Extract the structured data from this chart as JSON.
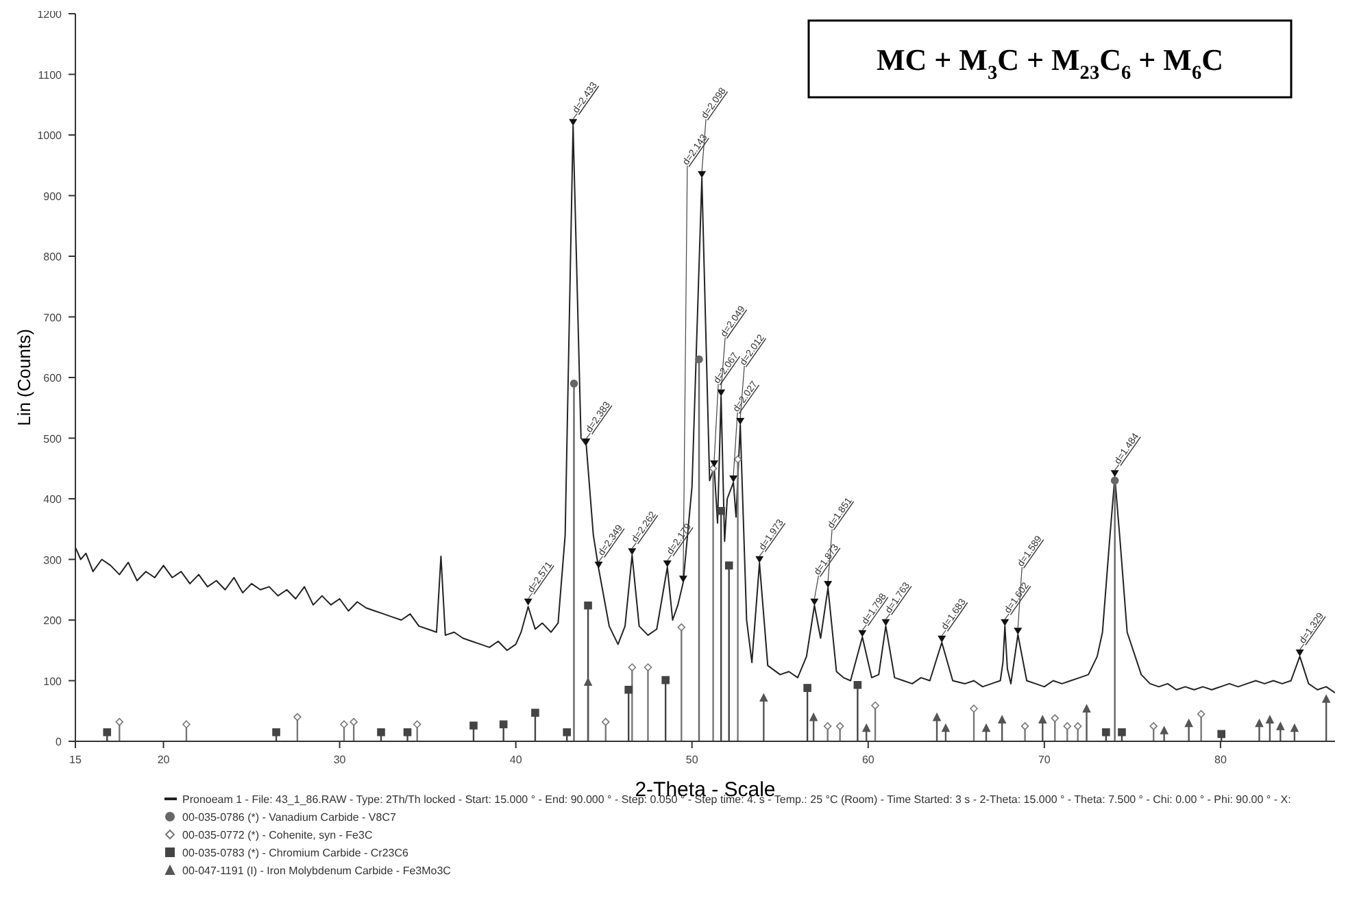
{
  "chart_data": {
    "type": "line",
    "title": "MC + M$_{3}$C + M$_{23}$C$_{6}$ + M$_{6}$C",
    "xlabel": "2-Theta - Scale",
    "ylabel": "Lin (Counts)",
    "xlim": [
      15,
      86.5
    ],
    "ylim": [
      0,
      1200
    ],
    "xticks": [
      {
        "value": 15,
        "label": "15"
      },
      {
        "value": 20,
        "label": "20"
      },
      {
        "value": 30,
        "label": "30"
      },
      {
        "value": 40,
        "label": "40"
      },
      {
        "value": 50,
        "label": "50"
      },
      {
        "value": 60,
        "label": "60"
      },
      {
        "value": 70,
        "label": "70"
      },
      {
        "value": 80,
        "label": "80"
      }
    ],
    "yticks": [
      0,
      100,
      200,
      300,
      400,
      500,
      600,
      700,
      800,
      900,
      1000,
      1100,
      1200
    ],
    "legend": "bottom",
    "grid": false,
    "series": [
      {
        "name": "Pronoeam 1 - File: 43_1_86.RAW - Type: 2Th/Th locked - Start: 15.000 ° - End: 90.000 ° - Step: 0.050 ° - Step time: 4. s - Temp.: 25 °C (Room) - Time Started: 3 s - 2-Theta: 15.000 ° - Theta: 7.500 ° - Chi: 0.00 ° - Phi: 90.00 ° - X:",
        "color": "#222222",
        "marker": "none",
        "x": [
          15,
          15.3,
          15.6,
          16,
          16.5,
          17,
          17.5,
          18,
          18.5,
          19,
          19.5,
          20,
          20.5,
          21,
          21.5,
          22,
          22.5,
          23,
          23.5,
          24,
          24.5,
          25,
          25.5,
          26,
          26.5,
          27,
          27.5,
          28,
          28.5,
          29,
          29.5,
          30,
          30.5,
          31,
          31.5,
          32,
          32.5,
          33,
          33.5,
          34,
          34.5,
          35,
          35.5,
          35.75,
          36,
          36.5,
          37,
          37.5,
          38,
          38.5,
          39,
          39.5,
          40,
          40.3,
          40.7,
          41.1,
          41.5,
          42,
          42.4,
          42.8,
          43.25,
          43.7,
          44.0,
          44.4,
          44.7,
          45.3,
          45.8,
          46.2,
          46.6,
          47.0,
          47.5,
          48.0,
          48.6,
          48.9,
          49.2,
          49.5,
          50.0,
          50.56,
          51.0,
          51.26,
          51.45,
          51.65,
          51.85,
          52.0,
          52.35,
          52.5,
          52.74,
          53.1,
          53.4,
          53.83,
          54.3,
          55,
          55.5,
          56,
          56.5,
          56.95,
          57.3,
          57.72,
          58.2,
          58.6,
          59,
          59.67,
          60.2,
          60.6,
          61.0,
          61.5,
          62,
          62.5,
          63,
          63.5,
          64.18,
          64.8,
          65.5,
          66,
          66.5,
          67,
          67.5,
          67.65,
          67.76,
          67.9,
          68.1,
          68.5,
          69,
          69.5,
          70,
          70.5,
          71,
          71.5,
          72,
          72.5,
          73,
          73.3,
          73.7,
          74.0,
          74.3,
          74.7,
          75.5,
          76,
          76.5,
          77,
          77.5,
          78,
          78.5,
          79,
          79.5,
          80,
          80.5,
          81,
          81.5,
          82,
          82.5,
          83,
          83.5,
          84,
          84.5,
          85,
          85.5,
          86,
          86.5
        ],
        "values": [
          320,
          300,
          310,
          280,
          300,
          290,
          275,
          295,
          265,
          280,
          270,
          290,
          270,
          280,
          260,
          275,
          255,
          265,
          250,
          270,
          245,
          260,
          250,
          255,
          240,
          250,
          235,
          255,
          225,
          240,
          225,
          235,
          215,
          230,
          220,
          215,
          210,
          205,
          200,
          210,
          190,
          185,
          180,
          305,
          175,
          180,
          170,
          165,
          160,
          155,
          165,
          150,
          160,
          180,
          222,
          185,
          195,
          180,
          195,
          340,
          1015,
          500,
          488,
          340,
          285,
          190,
          160,
          190,
          307,
          190,
          175,
          185,
          287,
          200,
          225,
          262,
          420,
          929,
          430,
          452,
          360,
          569,
          330,
          400,
          427,
          370,
          522,
          200,
          130,
          294,
          125,
          110,
          115,
          105,
          140,
          224,
          170,
          253,
          115,
          105,
          100,
          172,
          105,
          110,
          190,
          105,
          100,
          95,
          105,
          100,
          163,
          100,
          95,
          100,
          90,
          95,
          100,
          130,
          190,
          120,
          95,
          176,
          100,
          95,
          90,
          100,
          95,
          100,
          105,
          110,
          140,
          180,
          330,
          436,
          330,
          180,
          110,
          95,
          90,
          95,
          85,
          90,
          85,
          90,
          85,
          90,
          95,
          90,
          95,
          100,
          95,
          100,
          95,
          100,
          140,
          95,
          85,
          90,
          80
        ]
      },
      {
        "name": "00-035-0786 (*) - Vanadium Carbide - V8C7",
        "type": "lollipop",
        "color": "#666666",
        "marker": "circle",
        "x": [
          43.3,
          50.4,
          74.0
        ],
        "values": [
          590,
          630,
          430
        ]
      },
      {
        "name": "00-035-0772 (*) - Cohenite, syn - Fe3C",
        "type": "lollipop",
        "color": "#777777",
        "marker": "diamond",
        "x": [
          17.5,
          21.3,
          27.6,
          30.25,
          30.8,
          34.4,
          45.1,
          46.6,
          47.5,
          49.4,
          51.2,
          52.6,
          57.7,
          58.4,
          60.4,
          66.0,
          68.9,
          70.6,
          71.3,
          71.9,
          76.2,
          78.9
        ],
        "values": [
          32,
          28,
          40,
          28,
          32,
          28,
          32,
          122,
          122,
          188,
          450,
          465,
          25,
          25,
          59,
          54,
          25,
          38,
          25,
          25,
          25,
          45
        ]
      },
      {
        "name": "00-035-0783 (*) - Chromium Carbide - Cr23C6",
        "type": "lollipop",
        "color": "#444444",
        "marker": "square",
        "x": [
          16.8,
          26.4,
          32.35,
          33.85,
          37.6,
          39.3,
          41.1,
          42.9,
          44.1,
          46.4,
          48.5,
          51.65,
          52.1,
          56.55,
          59.4,
          73.5,
          74.4,
          80.05
        ],
        "values": [
          15,
          15,
          15,
          15,
          26,
          28,
          47,
          15,
          224,
          85,
          101,
          380,
          290,
          88,
          93,
          15,
          15,
          12
        ]
      },
      {
        "name": "00-047-1191 (I) - Iron Molybdenum Carbide - Fe3Mo3C",
        "type": "lollipop",
        "color": "#555555",
        "marker": "triangle",
        "x": [
          44.1,
          54.07,
          56.9,
          59.9,
          63.9,
          64.4,
          66.7,
          67.6,
          69.9,
          72.4,
          76.8,
          78.2,
          82.2,
          82.8,
          83.4,
          84.2,
          86.0
        ],
        "values": [
          98,
          72,
          40,
          22,
          40,
          22,
          22,
          36,
          36,
          54,
          18,
          30,
          30,
          36,
          25,
          22,
          70
        ]
      }
    ],
    "annotations": [
      {
        "text": "d=2.571",
        "x": 40.7,
        "y": 224
      },
      {
        "text": "d=2.433",
        "x": 43.25,
        "y": 1015
      },
      {
        "text": "d=2.383",
        "x": 44.0,
        "y": 488
      },
      {
        "text": "d=2.349",
        "x": 44.7,
        "y": 285
      },
      {
        "text": "d=2.262",
        "x": 46.6,
        "y": 307
      },
      {
        "text": "d=2.179",
        "x": 48.6,
        "y": 287
      },
      {
        "text": "d=2.143",
        "x": 49.5,
        "y": 262
      },
      {
        "text": "d=2.098",
        "x": 50.56,
        "y": 929
      },
      {
        "text": "d=2.049",
        "x": 51.65,
        "y": 569
      },
      {
        "text": "d=2.067",
        "x": 51.26,
        "y": 452
      },
      {
        "text": "d=2.027",
        "x": 52.35,
        "y": 427
      },
      {
        "text": "d=2.012",
        "x": 52.74,
        "y": 522
      },
      {
        "text": "d=1.973",
        "x": 53.83,
        "y": 294
      },
      {
        "text": "d=1.873",
        "x": 56.95,
        "y": 224
      },
      {
        "text": "d=1.851",
        "x": 57.72,
        "y": 253
      },
      {
        "text": "d=1.798",
        "x": 59.67,
        "y": 172
      },
      {
        "text": "d=1.763",
        "x": 61.0,
        "y": 190
      },
      {
        "text": "d=1.683",
        "x": 64.18,
        "y": 163
      },
      {
        "text": "d=1.602",
        "x": 67.76,
        "y": 190
      },
      {
        "text": "d=1.589",
        "x": 68.5,
        "y": 176
      },
      {
        "text": "d=1.484",
        "x": 74.0,
        "y": 436
      },
      {
        "text": "d=1.329",
        "x": 84.5,
        "y": 140
      }
    ]
  }
}
